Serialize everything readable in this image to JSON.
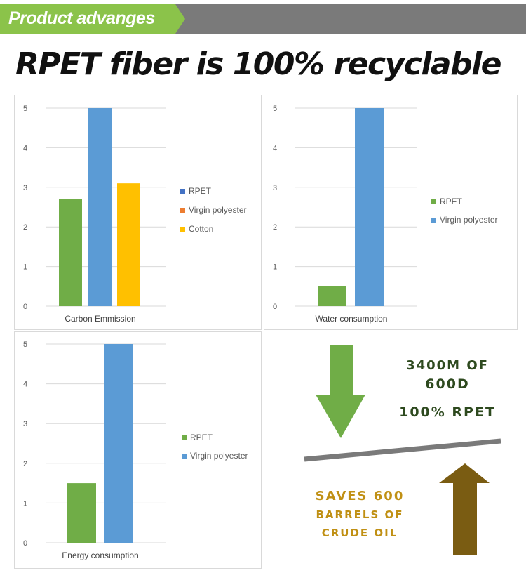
{
  "banner": {
    "title": "Product advanges",
    "bg_color": "#7a7a7a",
    "accent_color": "#8bc34a"
  },
  "headline": "RPET fiber is 100% recyclable",
  "colors": {
    "rpet_green": "#70ad47",
    "virgin_blue": "#5b9bd5",
    "cotton_yellow": "#ffc000",
    "legend_rpet_blue": "#4472c4",
    "legend_virgin_orange": "#ed7d31",
    "dark_green": "#2e4a1f",
    "gold": "#c09014",
    "bronze": "#7a5c12"
  },
  "chart_data": [
    {
      "type": "bar",
      "id": "carbon",
      "categories": [
        "Carbon Emmission"
      ],
      "series": [
        {
          "name": "RPET",
          "values": [
            2.7
          ]
        },
        {
          "name": "Virgin polyester",
          "values": [
            5.0
          ]
        },
        {
          "name": "Cotton",
          "values": [
            3.1
          ]
        }
      ],
      "xlabel": "",
      "ylabel": "",
      "ylim": [
        0,
        5
      ],
      "yticks": [
        "0",
        "1",
        "2",
        "3",
        "4",
        "5"
      ],
      "grid": true,
      "legend_placement": "right",
      "bar_colors": [
        "#70ad47",
        "#5b9bd5",
        "#ffc000"
      ],
      "legend_colors": [
        "#4472c4",
        "#ed7d31",
        "#ffc000"
      ]
    },
    {
      "type": "bar",
      "id": "water",
      "categories": [
        "Water consumption"
      ],
      "series": [
        {
          "name": "RPET",
          "values": [
            0.5
          ]
        },
        {
          "name": "Virgin polyester",
          "values": [
            5.0
          ]
        }
      ],
      "xlabel": "",
      "ylabel": "",
      "ylim": [
        0,
        5
      ],
      "yticks": [
        "0",
        "1",
        "2",
        "3",
        "4",
        "5"
      ],
      "grid": true,
      "legend_placement": "right",
      "bar_colors": [
        "#70ad47",
        "#5b9bd5"
      ],
      "legend_colors": [
        "#70ad47",
        "#5b9bd5"
      ]
    },
    {
      "type": "bar",
      "id": "energy",
      "categories": [
        "Energy consumption"
      ],
      "series": [
        {
          "name": "RPET",
          "values": [
            1.5
          ]
        },
        {
          "name": "Virgin polyester",
          "values": [
            5.0
          ]
        }
      ],
      "xlabel": "",
      "ylabel": "",
      "ylim": [
        0,
        5
      ],
      "yticks": [
        "0",
        "1",
        "2",
        "3",
        "4",
        "5"
      ],
      "grid": true,
      "legend_placement": "right",
      "bar_colors": [
        "#70ad47",
        "#5b9bd5"
      ],
      "legend_colors": [
        "#70ad47",
        "#5b9bd5"
      ]
    }
  ],
  "info": {
    "line1": "3400M OF",
    "line2": "600D",
    "line3": "100% RPET",
    "saves1": "SAVES 600",
    "saves2": "BARRELS OF",
    "saves3": "CRUDE OIL",
    "down_arrow_icon": "down-arrow-icon",
    "up_arrow_icon": "up-arrow-icon"
  }
}
